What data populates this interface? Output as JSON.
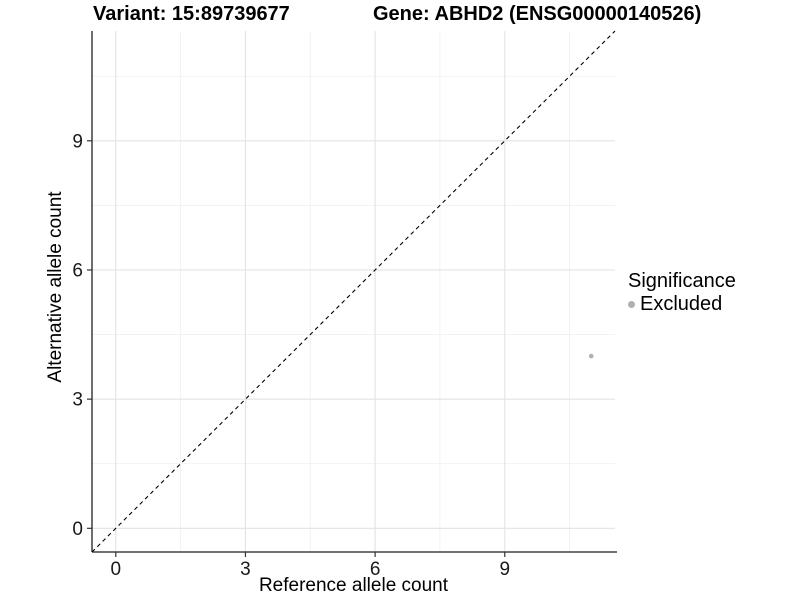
{
  "titles": {
    "variant": "Variant: 15:89739677",
    "gene": "Gene: ABHD2 (ENSG00000140526)"
  },
  "chart_data": {
    "type": "scatter",
    "xlabel": "Reference allele count",
    "ylabel": "Alternative allele count",
    "xlim": [
      -0.55,
      11.55
    ],
    "ylim": [
      -0.55,
      11.55
    ],
    "x_ticks": [
      0,
      3,
      6,
      9
    ],
    "y_ticks": [
      0,
      3,
      6,
      9
    ],
    "x_minor_ticks": [
      1.5,
      4.5,
      7.5,
      10.5
    ],
    "y_minor_ticks": [
      1.5,
      4.5,
      7.5,
      10.5
    ],
    "grid": "major+minor",
    "points": [
      {
        "x": 11,
        "y": 4,
        "series": "Excluded"
      }
    ],
    "identity_line": {
      "equation": "y = x",
      "style": "dashed",
      "x0": -0.55,
      "y0": -0.55,
      "x1": 11.55,
      "y1": 11.55
    },
    "legend": {
      "title": "Significance",
      "position": "right",
      "items": [
        {
          "label": "Excluded",
          "color": "#b0b0b0"
        }
      ]
    }
  },
  "colors": {
    "background": "#ffffff",
    "grid_major": "#e3e3e3",
    "grid_minor": "#f1f1f1",
    "axis_line": "#1f1f1f",
    "tick_mark": "#333333",
    "tick_label": "#1a1a1a",
    "point": "#b0b0b0",
    "identity_line": "#000000"
  }
}
